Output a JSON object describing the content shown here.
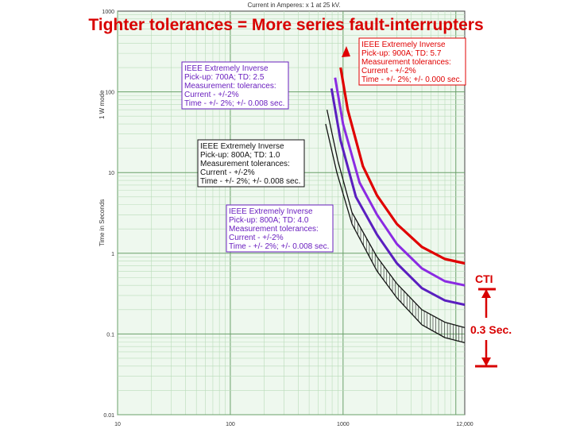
{
  "slide": {
    "title": "Tighter tolerances = More series fault-interrupters"
  },
  "chart_data": {
    "type": "line",
    "xlabel": "Current in Amperes: x 1 at 25 kV.",
    "ylabel": "Time in Seconds",
    "y_axis_note": "1 W mode",
    "x_scale": "log",
    "y_scale": "log",
    "xlim": [
      10,
      12000
    ],
    "ylim": [
      0.01,
      1000
    ],
    "x_ticks": [
      "10",
      "100",
      "1000",
      "12,000"
    ],
    "y_ticks": [
      "0.01",
      "0.1",
      "1",
      "10",
      "100",
      "1000"
    ],
    "series": [
      {
        "color": "#e00000",
        "x": [
          950,
          1100,
          1500,
          2000,
          3000,
          5000,
          8000,
          12000
        ],
        "y": [
          200,
          60,
          12,
          5.2,
          2.3,
          1.2,
          0.85,
          0.75
        ]
      },
      {
        "color": "#8a2be2",
        "x": [
          850,
          1000,
          1400,
          2000,
          3000,
          5000,
          8000,
          12000
        ],
        "y": [
          150,
          40,
          7.5,
          3.0,
          1.3,
          0.65,
          0.45,
          0.4
        ]
      },
      {
        "color": "#5a1fbf",
        "x": [
          790,
          950,
          1300,
          2000,
          3000,
          5000,
          8000,
          12000
        ],
        "y": [
          110,
          25,
          5.0,
          1.7,
          0.75,
          0.37,
          0.26,
          0.23
        ]
      },
      {
        "color": "#111111",
        "x": [
          720,
          900,
          1200,
          2000,
          3000,
          5000,
          8000,
          12000
        ],
        "y": [
          60,
          14,
          3.2,
          0.9,
          0.42,
          0.2,
          0.14,
          0.12
        ]
      },
      {
        "color": "#111111",
        "x": [
          700,
          880,
          1200,
          2000,
          3000,
          5000,
          8000,
          12000
        ],
        "y": [
          40,
          10,
          2.3,
          0.6,
          0.28,
          0.13,
          0.09,
          0.078
        ]
      }
    ],
    "annotations": [
      {
        "title": "IEEE Extremely Inverse",
        "lines": [
          "Pick-up: 900A; TD: 5.7",
          "Measurement tolerances:",
          "Current - +/-2%",
          "Time - +/- 2%; +/- 0.000 sec."
        ],
        "color": "#e00000"
      },
      {
        "title": "IEEE Extremely Inverse",
        "lines": [
          "Pick-up: 700A; TD: 2.5",
          "Measurement: tolerances:",
          "Current - +/-2%",
          "Time - +/- 2%; +/- 0.008 sec."
        ],
        "color": "#6a1fbf"
      },
      {
        "title": "IEEE Extremely Inverse",
        "lines": [
          "Pick-up: 800A; TD: 1.0",
          "Measurement tolerances:",
          "Current - +/-2%",
          "Time - +/- 2%; +/- 0.008 sec."
        ],
        "color": "#111111"
      },
      {
        "title": "IEEE Extremely Inverse",
        "lines": [
          "Pick-up: 800A; TD: 4.0",
          "Measurement tolerances:",
          "Current - +/-2%",
          "Time - +/- 2%; +/- 0.008 sec."
        ],
        "color": "#6a1fbf"
      }
    ],
    "cti": {
      "label": "CTI",
      "value_label": "0.3 Sec.",
      "color": "#d80000"
    }
  }
}
